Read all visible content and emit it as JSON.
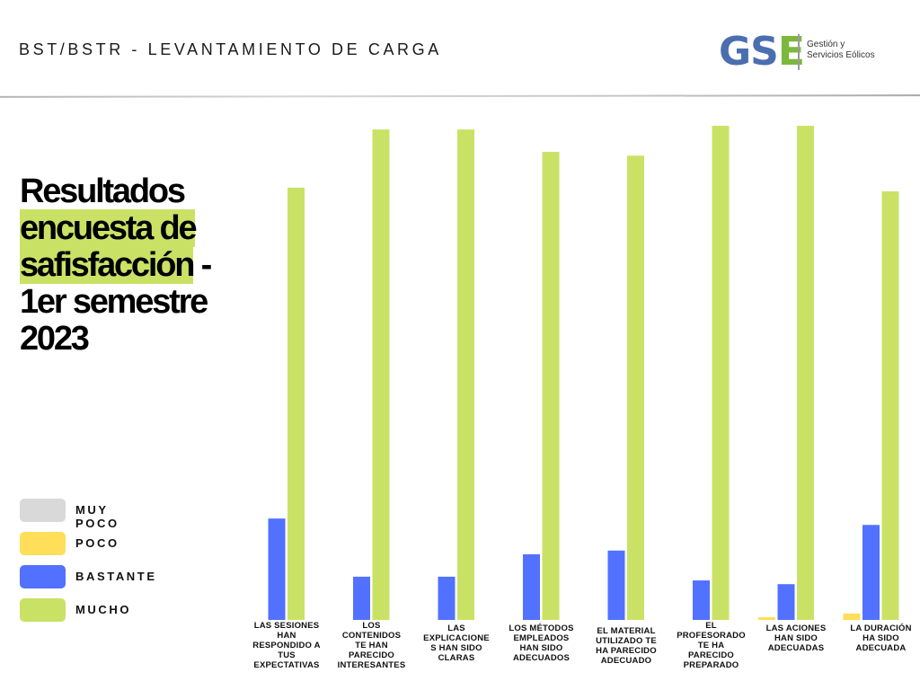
{
  "header": {
    "title": "BST/BSTR - LEVANTAMIENTO DE CARGA"
  },
  "logo": {
    "mark_g": "G",
    "mark_s": "S",
    "mark_e": "E",
    "line1": "Gestión y",
    "line2": "Servicios Eólicos"
  },
  "main_title": {
    "line1": "Resultados",
    "line2_highlight": "encuesta de",
    "line3_highlight": "safisfacción",
    "line3_rest": " -",
    "line4": "1er semestre",
    "line5": "2023"
  },
  "colors": {
    "muy_poco": "#d9d9d9",
    "poco": "#ffde59",
    "bastante": "#5271ff",
    "mucho": "#c9e265",
    "highlight": "#c9e265"
  },
  "chart_data": {
    "type": "bar",
    "title": "Resultados encuesta de safisfacción - 1er semestre 2023",
    "xlabel": "",
    "ylabel": "",
    "units": "percent of responses (estimated)",
    "ylim": [
      0,
      100
    ],
    "grid": false,
    "legend_position": "left",
    "categories": [
      "LAS SESIONES HAN RESPONDIDO A TUS EXPECTATIVAS",
      "LOS CONTENIDOS TE HAN PARECIDO INTERESANTES",
      "LAS EXPLICACIONES HAN SIDO CLARAS",
      "LOS MÉTODOS EMPLEADOS HAN SIDO ADECUADOS",
      "EL MATERIAL UTILIZADO TE HA PARECIDO ADECUADO",
      "EL PROFESORADO TE HA PARECIDO PREPARADO",
      "LAS ACIONES HAN SIDO ADECUADAS",
      "LA DURACIÓN HA SIDO ADECUADA"
    ],
    "category_label_lines": [
      [
        "LAS SESIONES",
        "HAN",
        "RESPONDIDO A",
        "TUS",
        "EXPECTATIVAS"
      ],
      [
        "LOS",
        "CONTENIDOS",
        "TE HAN",
        "PARECIDO",
        "INTERESANTES"
      ],
      [
        "LAS",
        "EXPLICACIONE",
        "S HAN SIDO",
        "CLARAS"
      ],
      [
        "LOS MÉTODOS",
        "EMPLEADOS",
        "HAN SIDO",
        "ADECUADOS"
      ],
      [
        "EL MATERIAL",
        "UTILIZADO TE",
        "HA PARECIDO",
        "ADECUADO"
      ],
      [
        "EL",
        "PROFESORADO",
        "TE HA",
        "PARECIDO",
        "PREPARADO"
      ],
      [
        "LAS ACIONES",
        "HAN SIDO",
        "ADECUADAS"
      ],
      [
        "LA DURACIÓN",
        "HA SIDO",
        "ADECUADA"
      ]
    ],
    "series": [
      {
        "name": "MUY POCO",
        "key": "muy_poco",
        "values": [
          0,
          0,
          0,
          0,
          0,
          0,
          0,
          0
        ]
      },
      {
        "name": "POCO",
        "key": "poco",
        "values": [
          0,
          0,
          0,
          0,
          0,
          0,
          0.5,
          1.2
        ]
      },
      {
        "name": "BASTANTE",
        "key": "bastante",
        "values": [
          19.0,
          8.1,
          8.1,
          12.3,
          13.0,
          7.4,
          6.7,
          17.8
        ]
      },
      {
        "name": "MUCHO",
        "key": "mucho",
        "values": [
          81.0,
          91.9,
          91.9,
          87.7,
          87.0,
          92.6,
          92.6,
          80.3
        ]
      }
    ]
  },
  "legend": [
    {
      "label": "MUY POCO",
      "key": "muy_poco"
    },
    {
      "label": "POCO",
      "key": "poco"
    },
    {
      "label": "BASTANTE",
      "key": "bastante"
    },
    {
      "label": "MUCHO",
      "key": "mucho"
    }
  ]
}
